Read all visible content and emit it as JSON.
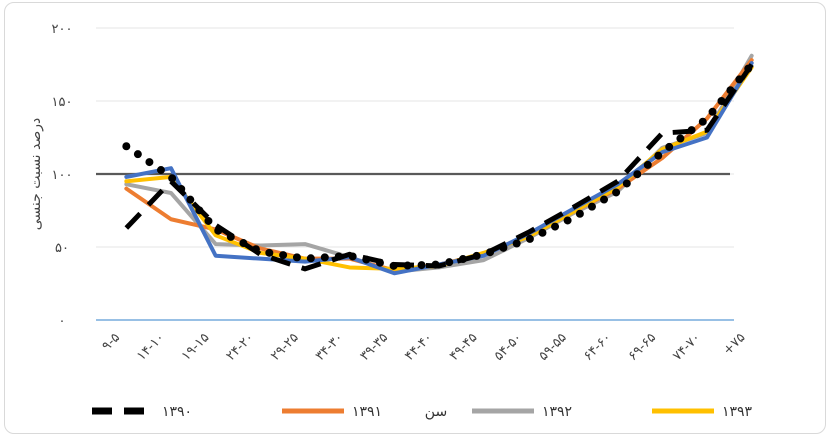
{
  "chart_data": {
    "type": "line",
    "title": "",
    "xlabel": "سن",
    "ylabel": "درصد نسبت جنسی",
    "ylim": [
      0,
      200
    ],
    "y_ticks": [
      {
        "value": 0,
        "label": "۰"
      },
      {
        "value": 50,
        "label": "۵۰"
      },
      {
        "value": 100,
        "label": "۱۰۰"
      },
      {
        "value": 150,
        "label": "۱۵۰"
      },
      {
        "value": 200,
        "label": "۲۰۰"
      }
    ],
    "categories": [
      "۹-۵",
      "۱۴-۱۰",
      "۱۹-۱۵",
      "۲۴-۲۰",
      "۲۹-۲۵",
      "۳۴-۳۰",
      "۳۹-۳۵",
      "۴۴-۴۰",
      "۴۹-۴۵",
      "۵۴-۵۰",
      "۵۹-۵۵",
      "۶۴-۶۰",
      "۶۹-۶۵",
      "۷۴-۷۰",
      "+۷۵"
    ],
    "reference_line": 100,
    "series": [
      {
        "name": "۱۳۹۰",
        "color": "#000000",
        "dash": "dash",
        "values": [
          63,
          95,
          65,
          45,
          35,
          45,
          38,
          37,
          45,
          60,
          77,
          95,
          128,
          130,
          175
        ]
      },
      {
        "name": "۱۳۹۱",
        "color": "#ed7d31",
        "dash": "solid",
        "values": [
          90,
          69,
          62,
          49,
          42,
          42,
          34,
          38,
          45,
          58,
          74,
          90,
          111,
          138,
          178
        ]
      },
      {
        "name": "۱۳۹۲",
        "color": "#a5a5a5",
        "dash": "solid",
        "values": [
          93,
          87,
          52,
          51,
          52,
          43,
          33,
          36,
          41,
          56,
          73,
          88,
          118,
          128,
          181
        ]
      },
      {
        "name": "۱۳۹۳",
        "color": "#ffc000",
        "dash": "solid",
        "values": [
          95,
          98,
          58,
          46,
          42,
          36,
          35,
          37,
          46,
          57,
          74,
          91,
          117,
          129,
          173
        ]
      },
      {
        "name": "۱۳۹۳",
        "color": "#4472c4",
        "dash": "solid",
        "values": [
          98,
          104,
          44,
          42,
          40,
          43,
          32,
          38,
          44,
          59,
          76,
          93,
          115,
          125,
          176
        ],
        "legend": false
      },
      {
        "name": "",
        "color": "#000000",
        "dash": "dot",
        "values": [
          119,
          98,
          62,
          47,
          42,
          44,
          37,
          38,
          45,
          55,
          70,
          88,
          115,
          138,
          175
        ],
        "legend": false
      }
    ],
    "legend_position": "bottom"
  }
}
